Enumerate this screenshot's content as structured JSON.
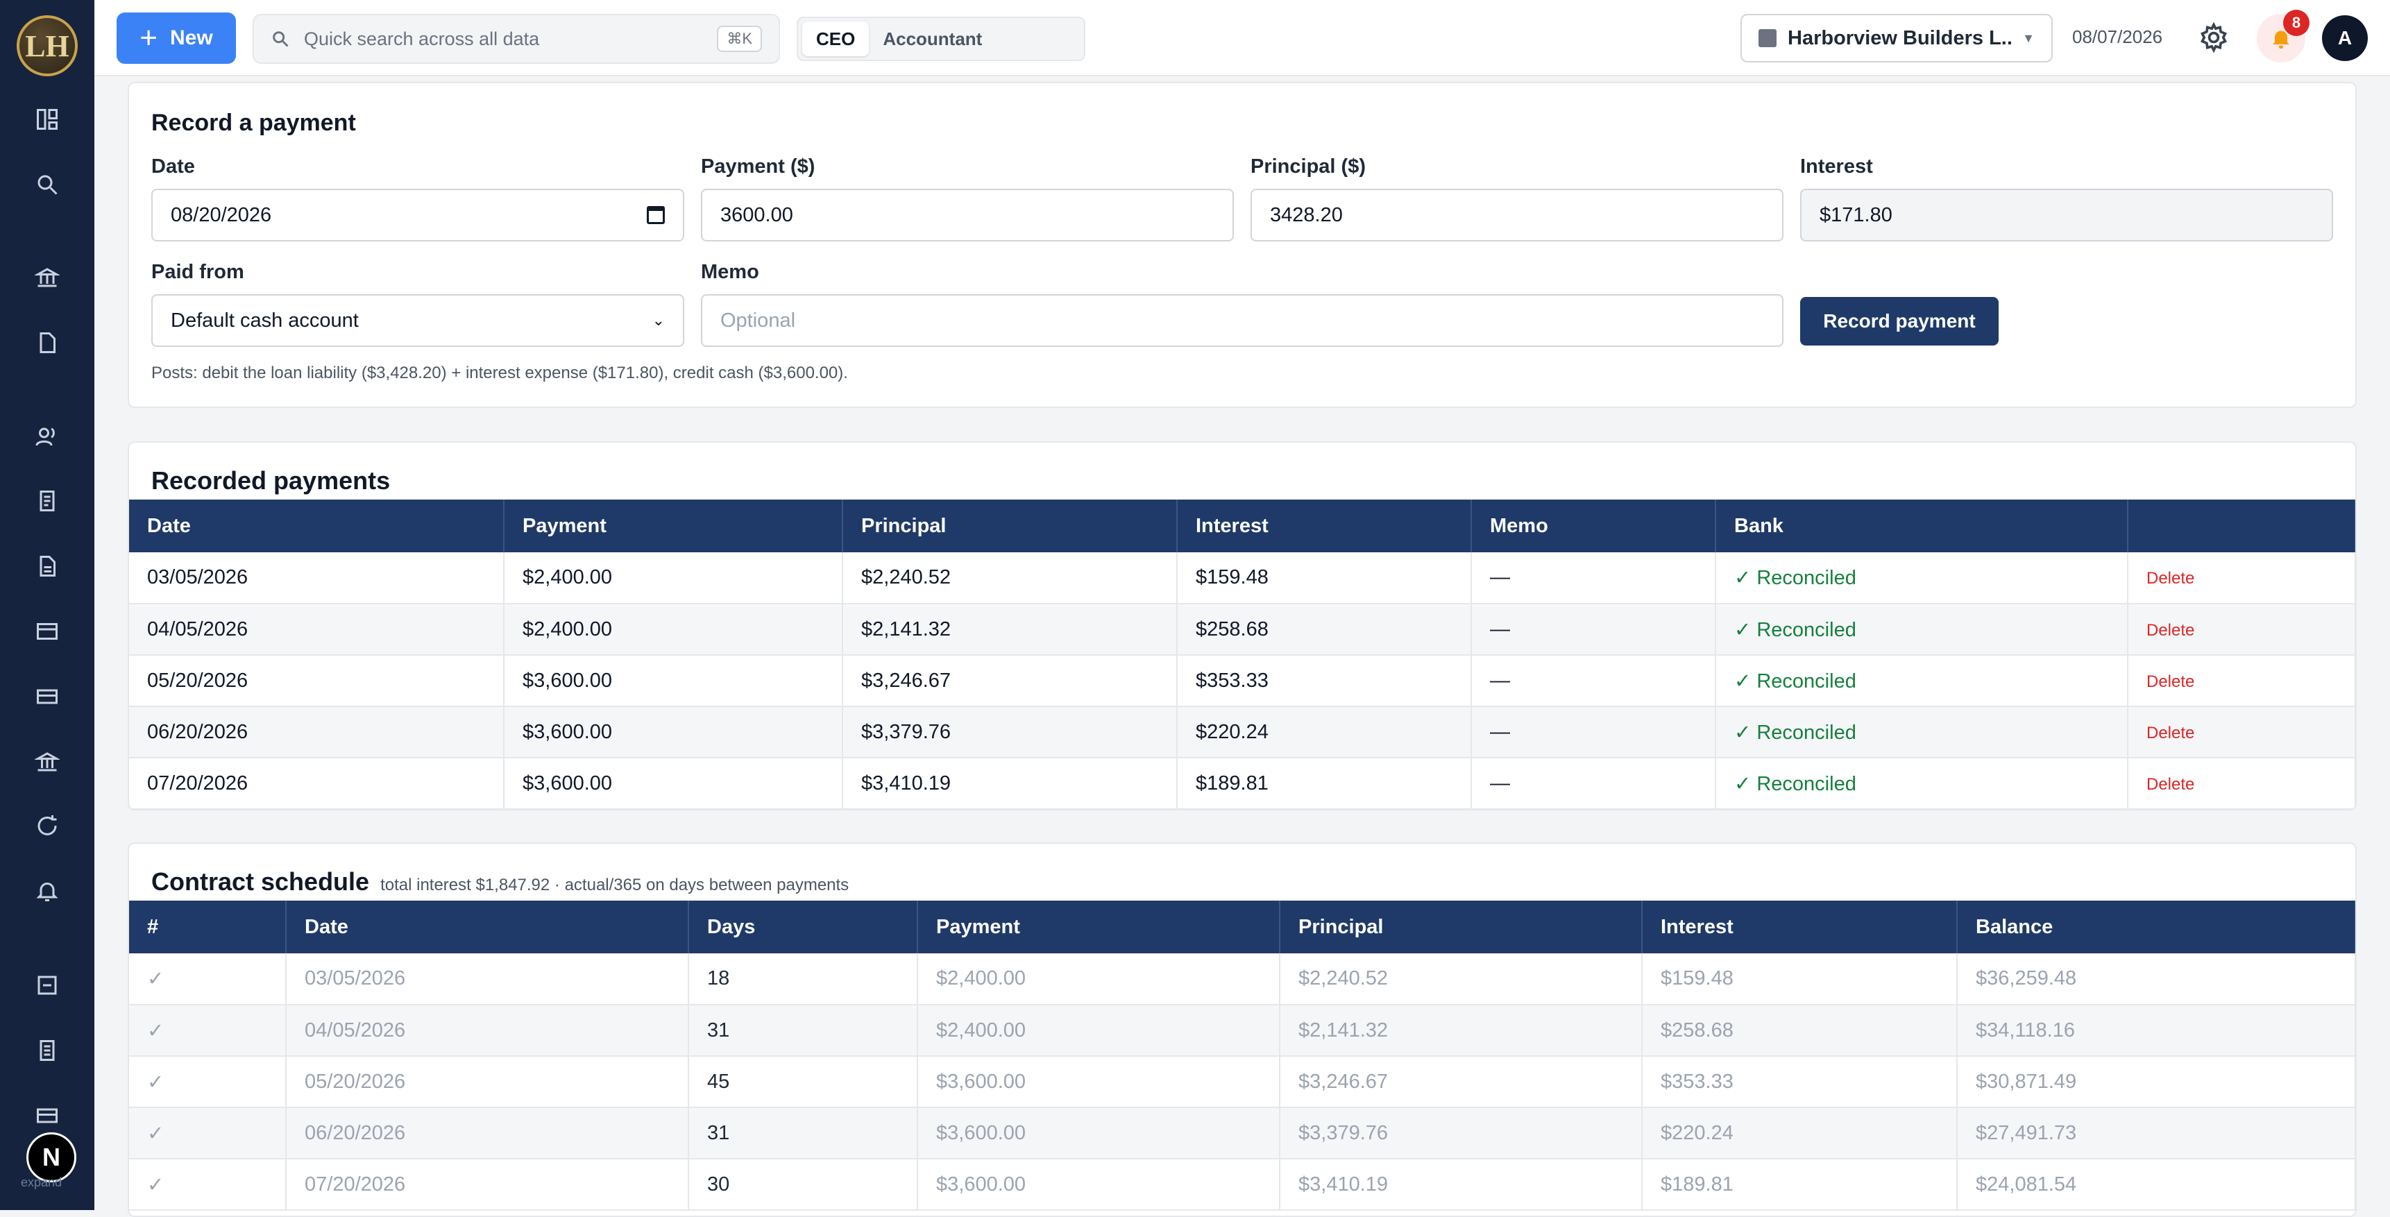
{
  "app": {
    "logo_text": "LH"
  },
  "sidebar": {
    "bottom_avatar": "N",
    "expand_label": "expand"
  },
  "topbar": {
    "new_label": "New",
    "search_placeholder": "Quick search across all data",
    "search_shortcut": "⌘K",
    "roles": [
      "CEO",
      "Accountant"
    ],
    "active_role": "CEO",
    "company": "Harborview Builders L...",
    "date": "08/07/2026",
    "notification_count": "8",
    "user_initial": "A"
  },
  "record_payment": {
    "title": "Record a payment",
    "date_label": "Date",
    "date_value": "08/20/2026",
    "payment_label": "Payment ($)",
    "payment_value": "3600.00",
    "principal_label": "Principal ($)",
    "principal_value": "3428.20",
    "interest_label": "Interest",
    "interest_value": "$171.80",
    "paid_from_label": "Paid from",
    "paid_from_value": "Default cash account",
    "memo_label": "Memo",
    "memo_placeholder": "Optional",
    "submit_label": "Record payment",
    "posts_note": "Posts: debit the loan liability ($3,428.20) + interest expense ($171.80), credit cash ($3,600.00)."
  },
  "recorded_payments": {
    "title": "Recorded payments",
    "columns": [
      "Date",
      "Payment",
      "Principal",
      "Interest",
      "Memo",
      "Bank",
      ""
    ],
    "rows": [
      {
        "date": "03/05/2026",
        "payment": "$2,400.00",
        "principal": "$2,240.52",
        "interest": "$159.48",
        "memo": "—",
        "bank": "✓ Reconciled",
        "action": "Delete"
      },
      {
        "date": "04/05/2026",
        "payment": "$2,400.00",
        "principal": "$2,141.32",
        "interest": "$258.68",
        "memo": "—",
        "bank": "✓ Reconciled",
        "action": "Delete"
      },
      {
        "date": "05/20/2026",
        "payment": "$3,600.00",
        "principal": "$3,246.67",
        "interest": "$353.33",
        "memo": "—",
        "bank": "✓ Reconciled",
        "action": "Delete"
      },
      {
        "date": "06/20/2026",
        "payment": "$3,600.00",
        "principal": "$3,379.76",
        "interest": "$220.24",
        "memo": "—",
        "bank": "✓ Reconciled",
        "action": "Delete"
      },
      {
        "date": "07/20/2026",
        "payment": "$3,600.00",
        "principal": "$3,410.19",
        "interest": "$189.81",
        "memo": "—",
        "bank": "✓ Reconciled",
        "action": "Delete"
      }
    ]
  },
  "contract_schedule": {
    "title": "Contract schedule",
    "subtitle": "total interest $1,847.92 · actual/365 on days between payments",
    "columns": [
      "#",
      "Date",
      "Days",
      "Payment",
      "Principal",
      "Interest",
      "Balance"
    ],
    "rows": [
      {
        "num": "✓",
        "date": "03/05/2026",
        "days": "18",
        "payment": "$2,400.00",
        "principal": "$2,240.52",
        "interest": "$159.48",
        "balance": "$36,259.48"
      },
      {
        "num": "✓",
        "date": "04/05/2026",
        "days": "31",
        "payment": "$2,400.00",
        "principal": "$2,141.32",
        "interest": "$258.68",
        "balance": "$34,118.16"
      },
      {
        "num": "✓",
        "date": "05/20/2026",
        "days": "45",
        "payment": "$3,600.00",
        "principal": "$3,246.67",
        "interest": "$353.33",
        "balance": "$30,871.49"
      },
      {
        "num": "✓",
        "date": "06/20/2026",
        "days": "31",
        "payment": "$3,600.00",
        "principal": "$3,379.76",
        "interest": "$220.24",
        "balance": "$27,491.73"
      },
      {
        "num": "✓",
        "date": "07/20/2026",
        "days": "30",
        "payment": "$3,600.00",
        "principal": "$3,410.19",
        "interest": "$189.81",
        "balance": "$24,081.54"
      }
    ]
  }
}
